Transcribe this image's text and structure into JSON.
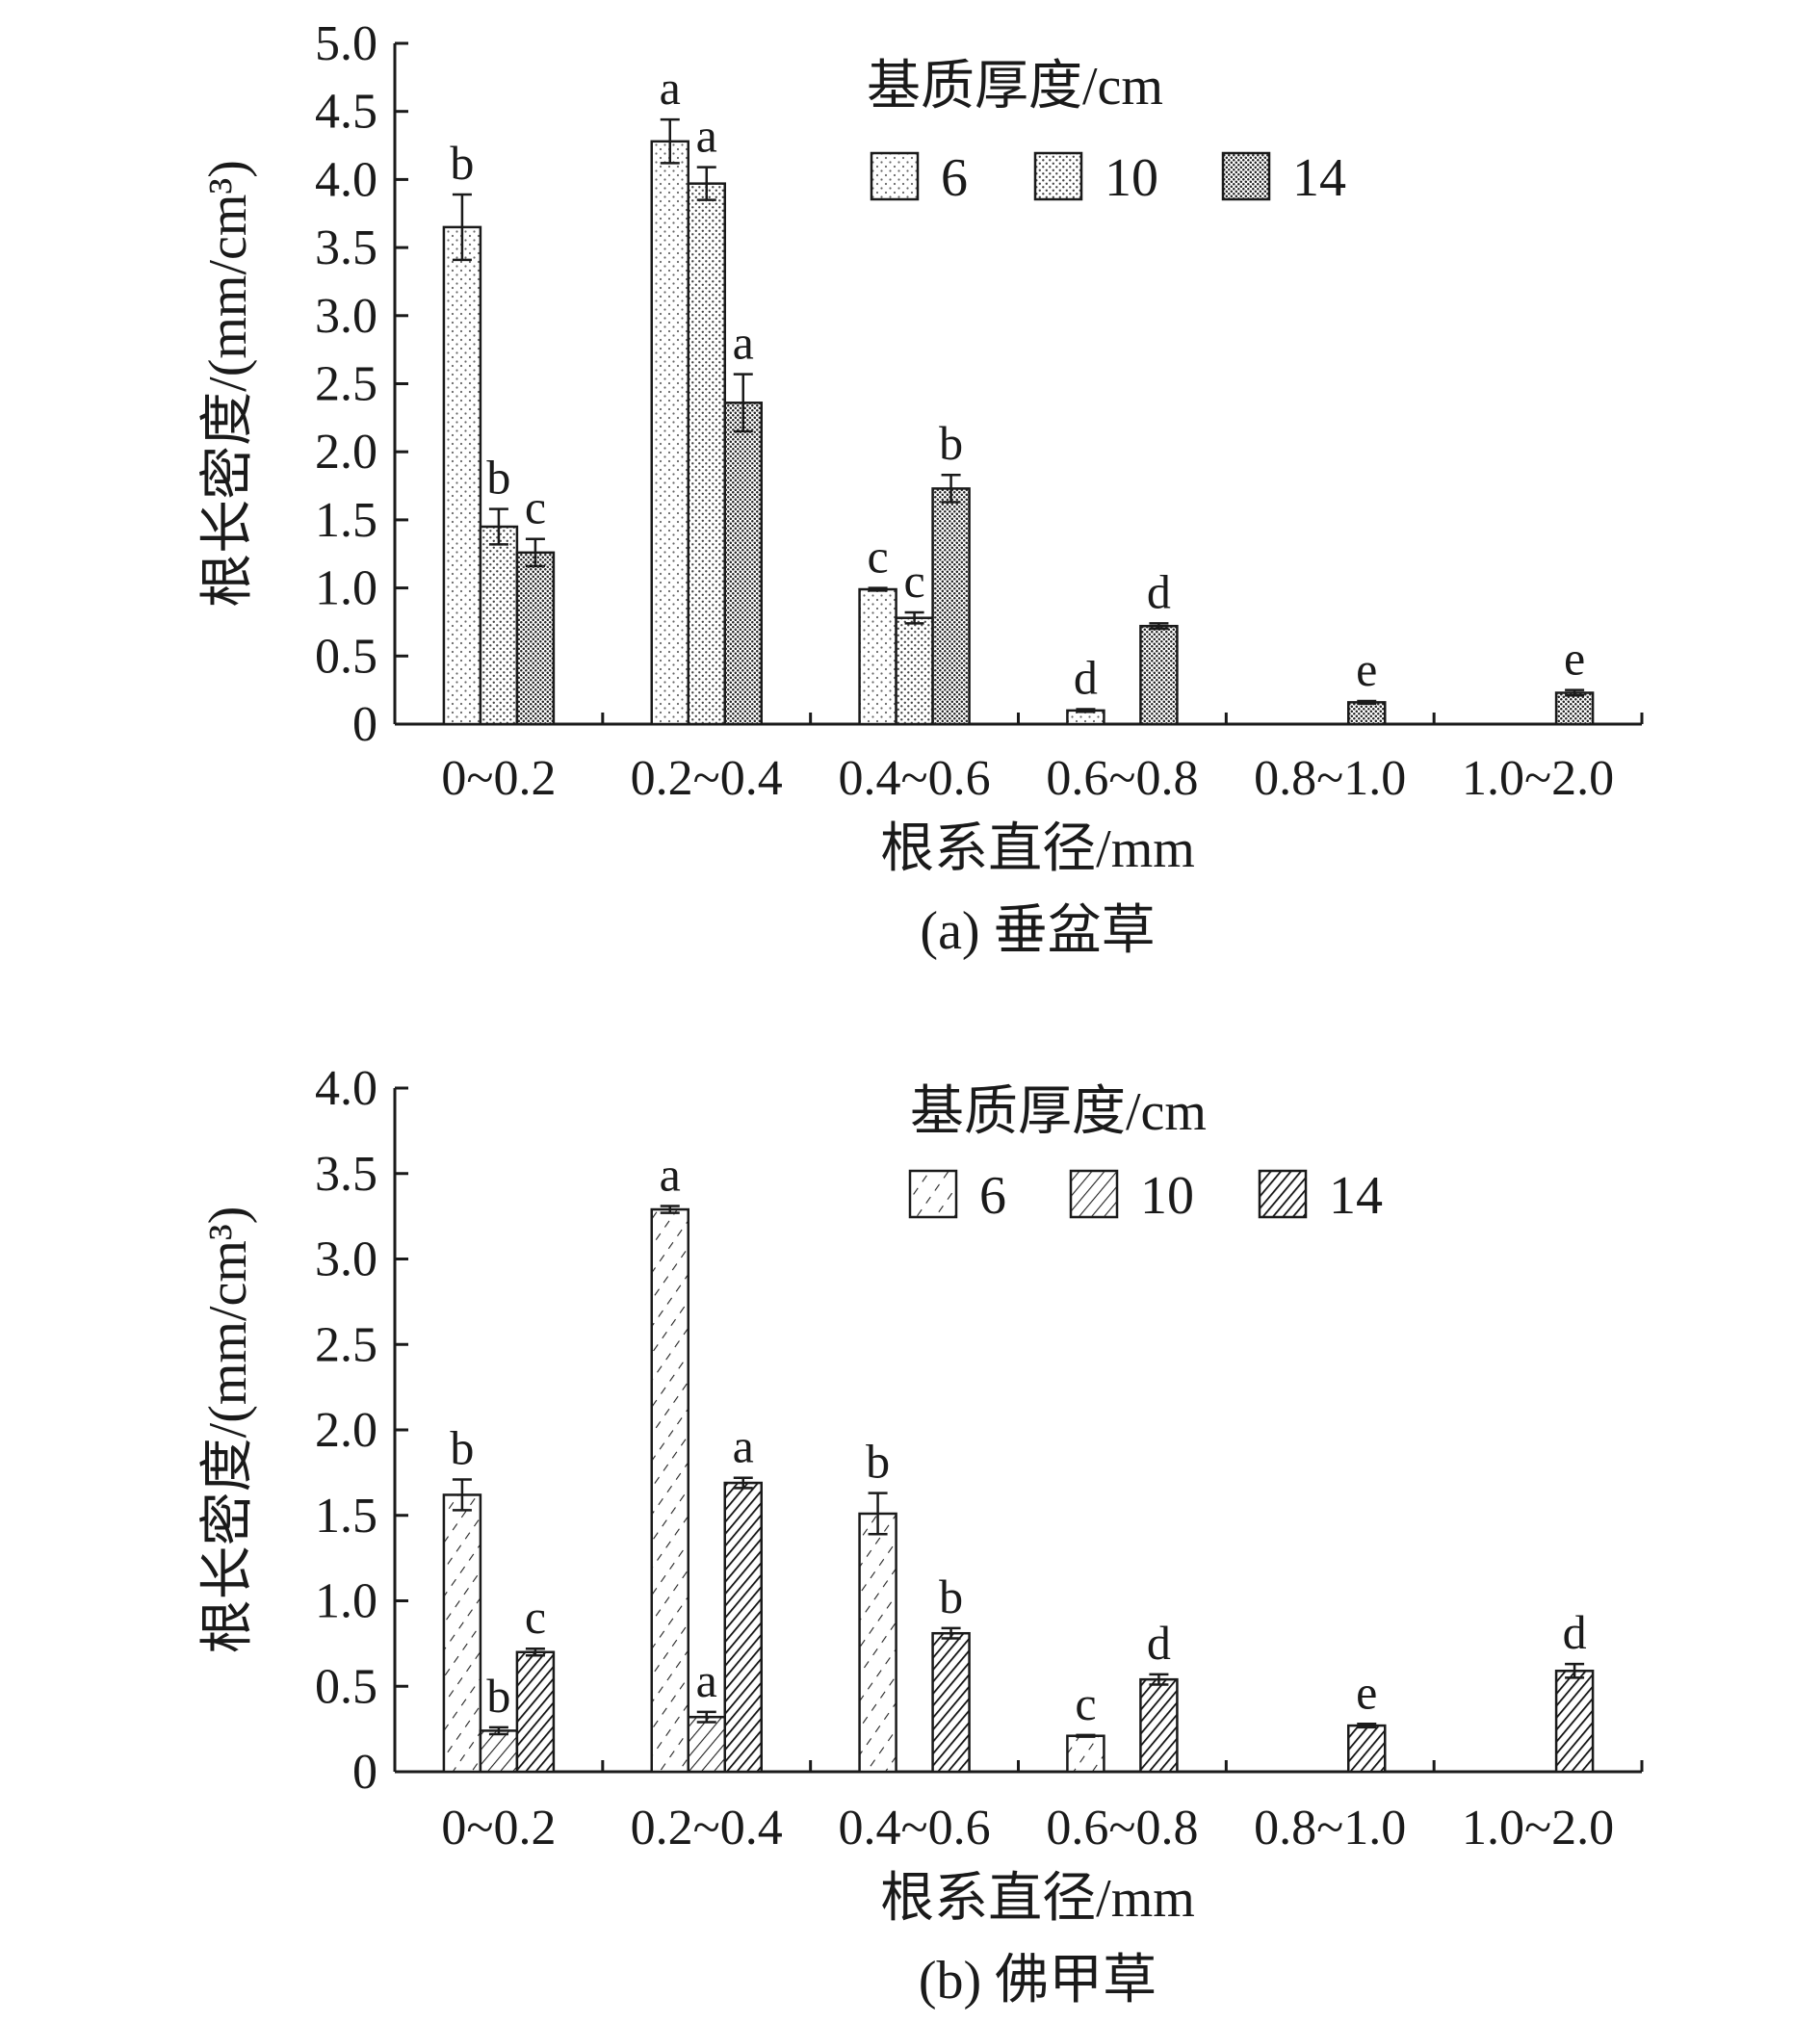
{
  "colors": {
    "ink": "#1a1a1a",
    "bar_fill": "#ffffff"
  },
  "chart_data": [
    {
      "type": "bar",
      "categories": [
        "0~0.2",
        "0.2~0.4",
        "0.4~0.6",
        "0.6~0.8",
        "0.8~1.0",
        "1.0~2.0"
      ],
      "series": [
        {
          "name": "6",
          "values": [
            3.65,
            4.28,
            0.99,
            0.1,
            null,
            null
          ],
          "errors": [
            0.24,
            0.16,
            0.01,
            0.01,
            null,
            null
          ],
          "labels": [
            "b",
            "a",
            "c",
            "d",
            "",
            ""
          ]
        },
        {
          "name": "10",
          "values": [
            1.45,
            3.97,
            0.78,
            null,
            null,
            null
          ],
          "errors": [
            0.13,
            0.12,
            0.04,
            null,
            null,
            null
          ],
          "labels": [
            "b",
            "a",
            "c",
            "",
            "",
            ""
          ]
        },
        {
          "name": "14",
          "values": [
            1.26,
            2.36,
            1.73,
            0.72,
            0.16,
            0.23
          ],
          "errors": [
            0.1,
            0.21,
            0.1,
            0.02,
            0.01,
            0.02
          ],
          "labels": [
            "c",
            "a",
            "b",
            "d",
            "e",
            "e"
          ]
        }
      ],
      "ylabel": "根长密度/(mm/cm³)",
      "xlabel": "根系直径/mm",
      "caption": "(a) 垂盆草",
      "legend_title": "基质厚度/cm",
      "legend_position": "top-right",
      "pattern": "dots",
      "ylim": [
        0,
        5.0
      ],
      "yticks": [
        "0",
        "0.5",
        "1.0",
        "1.5",
        "2.0",
        "2.5",
        "3.0",
        "3.5",
        "4.0",
        "4.5",
        "5.0"
      ],
      "grid": false
    },
    {
      "type": "bar",
      "categories": [
        "0~0.2",
        "0.2~0.4",
        "0.4~0.6",
        "0.6~0.8",
        "0.8~1.0",
        "1.0~2.0"
      ],
      "series": [
        {
          "name": "6",
          "values": [
            1.62,
            3.29,
            1.51,
            0.21,
            null,
            null
          ],
          "errors": [
            0.09,
            0.02,
            0.12,
            0.005,
            null,
            null
          ],
          "labels": [
            "b",
            "a",
            "b",
            "c",
            "",
            ""
          ]
        },
        {
          "name": "10",
          "values": [
            0.24,
            0.32,
            null,
            null,
            null,
            null
          ],
          "errors": [
            0.02,
            0.03,
            null,
            null,
            null,
            null
          ],
          "labels": [
            "b",
            "a",
            "",
            "",
            "",
            ""
          ]
        },
        {
          "name": "14",
          "values": [
            0.7,
            1.69,
            0.81,
            0.54,
            0.27,
            0.59
          ],
          "errors": [
            0.02,
            0.03,
            0.03,
            0.03,
            0.01,
            0.04
          ],
          "labels": [
            "c",
            "a",
            "b",
            "d",
            "e",
            "d"
          ]
        }
      ],
      "ylabel": "根长密度/(mm/cm³)",
      "xlabel": "根系直径/mm",
      "caption": "(b) 佛甲草",
      "legend_title": "基质厚度/cm",
      "legend_position": "top-right",
      "pattern": "hatch",
      "ylim": [
        0,
        4.0
      ],
      "yticks": [
        "0",
        "0.5",
        "1.0",
        "1.5",
        "2.0",
        "2.5",
        "3.0",
        "3.5",
        "4.0"
      ],
      "grid": false
    }
  ]
}
